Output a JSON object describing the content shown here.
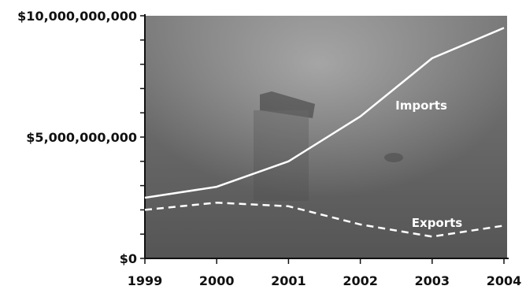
{
  "chart_data": {
    "type": "line",
    "title": "",
    "xlabel": "",
    "ylabel": "",
    "x": [
      "1999",
      "2000",
      "2001",
      "2002",
      "2003",
      "2004"
    ],
    "ylim": [
      0,
      10000000000
    ],
    "y_ticks": [
      0,
      5000000000,
      10000000000
    ],
    "y_tick_labels": [
      "$0",
      "$5,000,000,000",
      "$10,000,000,000"
    ],
    "grid": false,
    "legend": "none",
    "background": "photo of ship on water (dark gray)",
    "series": [
      {
        "name": "Imports",
        "style": "solid",
        "color": "#ffffff",
        "values": [
          2500000000,
          2950000000,
          4000000000,
          5850000000,
          8250000000,
          9500000000
        ]
      },
      {
        "name": "Exports",
        "style": "dashed",
        "color": "#ffffff",
        "values": [
          2000000000,
          2300000000,
          2150000000,
          1400000000,
          900000000,
          1350000000
        ]
      }
    ]
  },
  "colors": {
    "plot_bg": "#6f6f6f",
    "axis": "#111111",
    "line": "#ffffff"
  }
}
